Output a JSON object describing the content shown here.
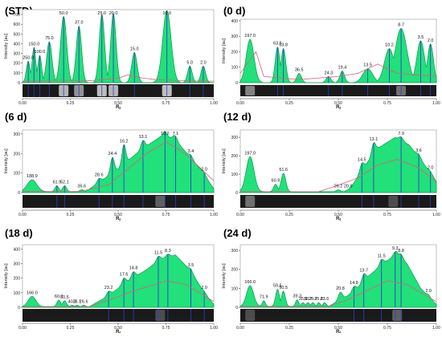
{
  "colors": {
    "fill": "#22e07a",
    "fill_edge": "#119a4e",
    "baseline": "#d8607a",
    "band_line": "#2a3fd0",
    "strip_bg": "#1a1a1a",
    "axis": "#333333"
  },
  "chart_data": [
    {
      "panel_label": "(STD)",
      "type": "area",
      "xlabel": "Rf",
      "ylabel": "Intensity [au]",
      "xlim": [
        0,
        1
      ],
      "ylim": [
        0,
        750
      ],
      "x_ticks": [
        "0.00",
        "0.25",
        "0.50",
        "0.75",
        "1.00"
      ],
      "y_ticks": [
        "0",
        "100",
        "200",
        "300",
        "400",
        "500",
        "600",
        "700"
      ],
      "peaks": [
        {
          "x": 0.03,
          "h": 220,
          "w": 0.01,
          "label": "250.0"
        },
        {
          "x": 0.06,
          "h": 360,
          "w": 0.01,
          "label": "150.0"
        },
        {
          "x": 0.09,
          "h": 280,
          "w": 0.01,
          "label": "100.0"
        },
        {
          "x": 0.14,
          "h": 420,
          "w": 0.014,
          "label": "75.0"
        },
        {
          "x": 0.215,
          "h": 680,
          "w": 0.016,
          "label": "50.0"
        },
        {
          "x": 0.295,
          "h": 580,
          "w": 0.014,
          "label": "37.0"
        },
        {
          "x": 0.415,
          "h": 700,
          "w": 0.014,
          "label": "25.0"
        },
        {
          "x": 0.475,
          "h": 710,
          "w": 0.014,
          "label": "20.0"
        },
        {
          "x": 0.585,
          "h": 310,
          "w": 0.014,
          "label": "15.0"
        },
        {
          "x": 0.755,
          "h": 740,
          "w": 0.022,
          "label": "10.0"
        },
        {
          "x": 0.875,
          "h": 170,
          "w": 0.012,
          "label": "5.0"
        },
        {
          "x": 0.945,
          "h": 170,
          "w": 0.012,
          "label": "2.0"
        }
      ],
      "baseline": [
        [
          0,
          15
        ],
        [
          0.2,
          25
        ],
        [
          0.35,
          20
        ],
        [
          0.5,
          45
        ],
        [
          0.55,
          80
        ],
        [
          0.62,
          50
        ],
        [
          0.7,
          30
        ],
        [
          0.85,
          20
        ],
        [
          1,
          15
        ]
      ],
      "bands": [
        0.03,
        0.06,
        0.09,
        0.14,
        0.215,
        0.295,
        0.415,
        0.475,
        0.585,
        0.755,
        0.875,
        0.945
      ],
      "strip_bands": [
        [
          0.215,
          0.9
        ],
        [
          0.295,
          0.7
        ],
        [
          0.415,
          0.95
        ],
        [
          0.475,
          0.9
        ],
        [
          0.755,
          0.95
        ]
      ]
    },
    {
      "panel_label": "(0 d)",
      "type": "area",
      "xlabel": "Rf",
      "ylabel": "Intensity [au]",
      "xlim": [
        0,
        1
      ],
      "ylim": [
        0,
        410
      ],
      "x_ticks": [
        "0.00",
        "0.25",
        "0.50",
        "0.75",
        "1.00"
      ],
      "y_ticks": [
        "0",
        "100",
        "200",
        "300",
        "400"
      ],
      "peaks": [
        {
          "x": 0.05,
          "h": 280,
          "w": 0.02,
          "label": "197.0"
        },
        {
          "x": 0.19,
          "h": 230,
          "w": 0.012,
          "label": "63.5"
        },
        {
          "x": 0.22,
          "h": 220,
          "w": 0.012,
          "label": "53.8"
        },
        {
          "x": 0.3,
          "h": 60,
          "w": 0.012,
          "label": "36.5"
        },
        {
          "x": 0.45,
          "h": 40,
          "w": 0.012,
          "label": "24.3"
        },
        {
          "x": 0.52,
          "h": 75,
          "w": 0.012,
          "label": "19.4"
        },
        {
          "x": 0.65,
          "h": 90,
          "w": 0.025,
          "label": "13.5"
        },
        {
          "x": 0.76,
          "h": 220,
          "w": 0.025,
          "label": "10.2"
        },
        {
          "x": 0.82,
          "h": 350,
          "w": 0.03,
          "label": "8.7"
        },
        {
          "x": 0.92,
          "h": 270,
          "w": 0.02,
          "label": "3.5"
        },
        {
          "x": 0.97,
          "h": 250,
          "w": 0.015,
          "label": "2.0"
        }
      ],
      "baseline": [
        [
          0,
          60
        ],
        [
          0.08,
          200
        ],
        [
          0.12,
          40
        ],
        [
          0.3,
          20
        ],
        [
          0.5,
          40
        ],
        [
          0.6,
          60
        ],
        [
          0.7,
          120
        ],
        [
          0.8,
          60
        ],
        [
          1,
          40
        ]
      ],
      "bands": [
        0.19,
        0.22,
        0.45,
        0.52,
        0.65,
        0.76,
        0.82,
        0.92,
        0.97
      ],
      "strip_bands": [
        [
          0.05,
          0.6
        ],
        [
          0.82,
          0.5
        ]
      ]
    },
    {
      "panel_label": "(6 d)",
      "type": "area",
      "xlabel": "Rf",
      "ylabel": "Intensity [au]",
      "xlim": [
        0,
        1
      ],
      "ylim": [
        0,
        320
      ],
      "x_ticks": [
        "0.00",
        "0.25",
        "0.50",
        "0.75",
        "1.00"
      ],
      "y_ticks": [
        "0",
        "100",
        "200",
        "300"
      ],
      "peaks": [
        {
          "x": 0.05,
          "h": 60,
          "w": 0.025,
          "label": "188.9"
        },
        {
          "x": 0.18,
          "h": 30,
          "w": 0.01,
          "label": "61.9"
        },
        {
          "x": 0.22,
          "h": 30,
          "w": 0.01,
          "label": "52.1"
        },
        {
          "x": 0.31,
          "h": 10,
          "w": 0.01,
          "label": "36.6"
        },
        {
          "x": 0.4,
          "h": 20,
          "w": 0.01,
          "label": "28.6"
        },
        {
          "x": 0.47,
          "h": 80,
          "w": 0.01,
          "label": "24.4"
        },
        {
          "x": 0.53,
          "h": 100,
          "w": 0.01,
          "label": "16.2"
        },
        {
          "x": 0.63,
          "h": 40,
          "w": 0.01,
          "label": "13.1"
        },
        {
          "x": 0.745,
          "h": 30,
          "w": 0.01,
          "label": "10.2"
        },
        {
          "x": 0.8,
          "h": 20,
          "w": 0.01,
          "label": "7.1"
        },
        {
          "x": 0.88,
          "h": 15,
          "w": 0.01,
          "label": "3.4"
        },
        {
          "x": 0.95,
          "h": 10,
          "w": 0.01,
          "label": "2.0"
        }
      ],
      "hill": [
        [
          0.33,
          5
        ],
        [
          0.5,
          120
        ],
        [
          0.62,
          220
        ],
        [
          0.72,
          285
        ],
        [
          0.79,
          280
        ],
        [
          0.86,
          200
        ],
        [
          0.93,
          120
        ],
        [
          1,
          20
        ]
      ],
      "baseline": [
        [
          0,
          5
        ],
        [
          0.3,
          5
        ],
        [
          0.45,
          40
        ],
        [
          0.55,
          120
        ],
        [
          0.65,
          200
        ],
        [
          0.75,
          260
        ],
        [
          0.85,
          200
        ],
        [
          1,
          60
        ]
      ],
      "bands": [
        0.18,
        0.22,
        0.4,
        0.47,
        0.53,
        0.63,
        0.745,
        0.8,
        0.88,
        0.95
      ],
      "strip_bands": [
        [
          0.72,
          0.4
        ]
      ]
    },
    {
      "panel_label": "(12 d)",
      "type": "area",
      "xlabel": "Rf",
      "ylabel": "Intensity [au]",
      "xlim": [
        0,
        1
      ],
      "ylim": [
        0,
        340
      ],
      "x_ticks": [
        "0.00",
        "0.25",
        "0.50",
        "0.75",
        "1.00"
      ],
      "y_ticks": [
        "0",
        "100",
        "200",
        "300"
      ],
      "peaks": [
        {
          "x": 0.05,
          "h": 190,
          "w": 0.02,
          "label": "197.0"
        },
        {
          "x": 0.18,
          "h": 40,
          "w": 0.01,
          "label": "60.9"
        },
        {
          "x": 0.22,
          "h": 100,
          "w": 0.012,
          "label": "51.6"
        },
        {
          "x": 0.5,
          "h": 10,
          "w": 0.01,
          "label": "26.2"
        },
        {
          "x": 0.55,
          "h": 10,
          "w": 0.01,
          "label": "20.9"
        },
        {
          "x": 0.62,
          "h": 40,
          "w": 0.01,
          "label": "14.5"
        },
        {
          "x": 0.68,
          "h": 60,
          "w": 0.01,
          "label": "13.1"
        },
        {
          "x": 0.82,
          "h": 20,
          "w": 0.01,
          "label": "7.9"
        },
        {
          "x": 0.91,
          "h": 15,
          "w": 0.01,
          "label": "3.6"
        },
        {
          "x": 0.97,
          "h": 10,
          "w": 0.01,
          "label": "2.0"
        }
      ],
      "hill": [
        [
          0.55,
          5
        ],
        [
          0.62,
          120
        ],
        [
          0.7,
          240
        ],
        [
          0.79,
          300
        ],
        [
          0.86,
          260
        ],
        [
          0.92,
          180
        ],
        [
          1,
          60
        ]
      ],
      "baseline": [
        [
          0,
          5
        ],
        [
          0.4,
          5
        ],
        [
          0.5,
          40
        ],
        [
          0.6,
          80
        ],
        [
          0.7,
          150
        ],
        [
          0.8,
          180
        ],
        [
          0.9,
          140
        ],
        [
          1,
          60
        ]
      ],
      "bands": [
        0.62,
        0.68,
        0.82,
        0.91,
        0.97
      ],
      "strip_bands": [
        [
          0.05,
          0.5
        ],
        [
          0.78,
          0.3
        ]
      ]
    },
    {
      "panel_label": "(18 d)",
      "type": "area",
      "xlabel": "Rf",
      "ylabel": "Intensity [au]",
      "xlim": [
        0,
        1
      ],
      "ylim": [
        0,
        430
      ],
      "x_ticks": [
        "0.00",
        "0.25",
        "0.50",
        "0.75",
        "1.00"
      ],
      "y_ticks": [
        "0",
        "100",
        "200",
        "300",
        "400"
      ],
      "peaks": [
        {
          "x": 0.05,
          "h": 70,
          "w": 0.02,
          "label": "166.0"
        },
        {
          "x": 0.19,
          "h": 45,
          "w": 0.01,
          "label": "60.7"
        },
        {
          "x": 0.22,
          "h": 40,
          "w": 0.01,
          "label": "50.5"
        },
        {
          "x": 0.26,
          "h": 10,
          "w": 0.008,
          "label": "40.2"
        },
        {
          "x": 0.285,
          "h": 10,
          "w": 0.008,
          "label": "36.1"
        },
        {
          "x": 0.32,
          "h": 10,
          "w": 0.008,
          "label": "26.6"
        },
        {
          "x": 0.45,
          "h": 30,
          "w": 0.01,
          "label": "23.2"
        },
        {
          "x": 0.53,
          "h": 40,
          "w": 0.01,
          "label": "17.6"
        },
        {
          "x": 0.58,
          "h": 40,
          "w": 0.01,
          "label": "14.8"
        },
        {
          "x": 0.71,
          "h": 30,
          "w": 0.01,
          "label": "11.5"
        },
        {
          "x": 0.76,
          "h": 20,
          "w": 0.01,
          "label": "8.3"
        },
        {
          "x": 0.88,
          "h": 15,
          "w": 0.01,
          "label": "3.5"
        },
        {
          "x": 0.95,
          "h": 10,
          "w": 0.01,
          "label": "2.0"
        }
      ],
      "hill": [
        [
          0.35,
          5
        ],
        [
          0.45,
          80
        ],
        [
          0.55,
          180
        ],
        [
          0.65,
          260
        ],
        [
          0.72,
          330
        ],
        [
          0.8,
          360
        ],
        [
          0.88,
          250
        ],
        [
          0.95,
          100
        ],
        [
          1,
          20
        ]
      ],
      "baseline": [
        [
          0,
          5
        ],
        [
          0.35,
          5
        ],
        [
          0.45,
          50
        ],
        [
          0.6,
          120
        ],
        [
          0.75,
          180
        ],
        [
          0.85,
          160
        ],
        [
          1,
          40
        ]
      ],
      "bands": [
        0.45,
        0.53,
        0.58,
        0.71,
        0.76,
        0.88,
        0.95
      ],
      "strip_bands": [
        [
          0.72,
          0.3
        ]
      ]
    },
    {
      "panel_label": "(24 d)",
      "type": "area",
      "xlabel": "Rf",
      "ylabel": "Intensity [au]",
      "xlim": [
        0,
        1
      ],
      "ylim": [
        0,
        330
      ],
      "x_ticks": [
        "0.00",
        "0.25",
        "0.50",
        "0.75",
        "1.00"
      ],
      "y_ticks": [
        "0",
        "100",
        "200",
        "300"
      ],
      "peaks": [
        {
          "x": 0.05,
          "h": 110,
          "w": 0.018,
          "label": "166.0"
        },
        {
          "x": 0.12,
          "h": 30,
          "w": 0.008,
          "label": "71.9"
        },
        {
          "x": 0.19,
          "h": 90,
          "w": 0.01,
          "label": "59.5"
        },
        {
          "x": 0.22,
          "h": 80,
          "w": 0.01,
          "label": "50.5"
        },
        {
          "x": 0.29,
          "h": 35,
          "w": 0.008,
          "label": "39.3"
        },
        {
          "x": 0.32,
          "h": 20,
          "w": 0.008,
          "label": "35.0"
        },
        {
          "x": 0.345,
          "h": 20,
          "w": 0.008,
          "label": "30.7"
        },
        {
          "x": 0.37,
          "h": 20,
          "w": 0.008,
          "label": "29.2"
        },
        {
          "x": 0.4,
          "h": 20,
          "w": 0.008,
          "label": "25.8"
        },
        {
          "x": 0.43,
          "h": 20,
          "w": 0.008,
          "label": "23.6"
        },
        {
          "x": 0.51,
          "h": 40,
          "w": 0.01,
          "label": "20.8"
        },
        {
          "x": 0.58,
          "h": 30,
          "w": 0.01,
          "label": "14.8"
        },
        {
          "x": 0.63,
          "h": 40,
          "w": 0.01,
          "label": "13.7"
        },
        {
          "x": 0.72,
          "h": 30,
          "w": 0.01,
          "label": "11.5"
        },
        {
          "x": 0.79,
          "h": 20,
          "w": 0.01,
          "label": "9.3"
        },
        {
          "x": 0.82,
          "h": 20,
          "w": 0.01,
          "label": "8.8"
        },
        {
          "x": 0.96,
          "h": 10,
          "w": 0.008,
          "label": "2.0"
        }
      ],
      "hill": [
        [
          0.45,
          5
        ],
        [
          0.58,
          80
        ],
        [
          0.66,
          170
        ],
        [
          0.74,
          240
        ],
        [
          0.8,
          280
        ],
        [
          0.85,
          230
        ],
        [
          0.92,
          100
        ],
        [
          1,
          15
        ]
      ],
      "baseline": [
        [
          0,
          5
        ],
        [
          0.45,
          5
        ],
        [
          0.55,
          40
        ],
        [
          0.65,
          90
        ],
        [
          0.75,
          140
        ],
        [
          0.85,
          120
        ],
        [
          1,
          30
        ]
      ],
      "bands": [
        0.58,
        0.63,
        0.72,
        0.79,
        0.82
      ],
      "strip_bands": [
        [
          0.05,
          0.3
        ],
        [
          0.8,
          0.4
        ]
      ]
    }
  ]
}
